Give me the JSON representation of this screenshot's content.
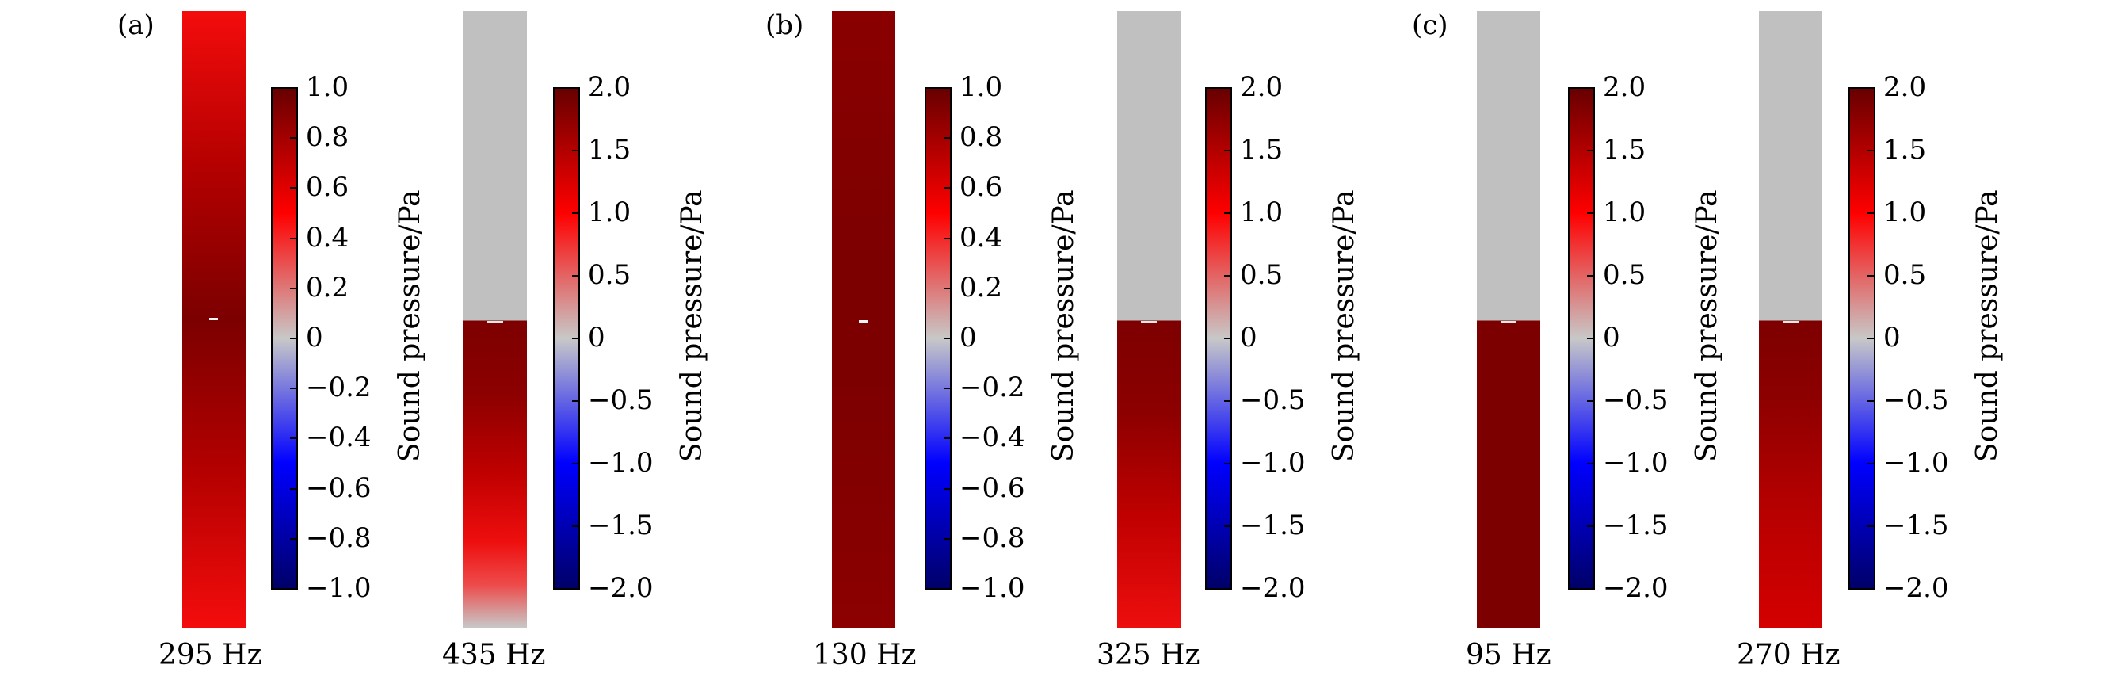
{
  "colors": {
    "gray": "#c0c0c0",
    "dark_red": "#7d0000",
    "mid_red": "#b00000",
    "bright_red": "#ee0e0e"
  },
  "panels": [
    {
      "label": "(a)",
      "columns": [
        {
          "frequency": "295 Hz",
          "colorbar_ticks": [
            "1.0",
            "0.8",
            "0.6",
            "0.4",
            "0.2",
            "0",
            "−0.2",
            "−0.4",
            "−0.6",
            "−0.8",
            "−1.0"
          ],
          "colorbar_title": "Sound pressure/Pa"
        },
        {
          "frequency": "435 Hz",
          "colorbar_ticks": [
            "2.0",
            "1.5",
            "1.0",
            "0.5",
            "0",
            "−0.5",
            "−1.0",
            "−1.5",
            "−2.0"
          ],
          "colorbar_title": "Sound pressure/Pa"
        }
      ]
    },
    {
      "label": "(b)",
      "columns": [
        {
          "frequency": "130 Hz",
          "colorbar_ticks": [
            "1.0",
            "0.8",
            "0.6",
            "0.4",
            "0.2",
            "0",
            "−0.2",
            "−0.4",
            "−0.6",
            "−0.8",
            "−1.0"
          ],
          "colorbar_title": "Sound pressure/Pa"
        },
        {
          "frequency": "325 Hz",
          "colorbar_ticks": [
            "2.0",
            "1.5",
            "1.0",
            "0.5",
            "0",
            "−0.5",
            "−1.0",
            "−1.5",
            "−2.0"
          ],
          "colorbar_title": "Sound pressure/Pa"
        }
      ]
    },
    {
      "label": "(c)",
      "columns": [
        {
          "frequency": "95 Hz",
          "colorbar_ticks": [
            "2.0",
            "1.5",
            "1.0",
            "0.5",
            "0",
            "−0.5",
            "−1.0",
            "−1.5",
            "−2.0"
          ],
          "colorbar_title": "Sound pressure/Pa"
        },
        {
          "frequency": "270 Hz",
          "colorbar_ticks": [
            "2.0",
            "1.5",
            "1.0",
            "0.5",
            "0",
            "−0.5",
            "−1.0",
            "−1.5",
            "−2.0"
          ],
          "colorbar_title": "Sound pressure/Pa"
        }
      ]
    }
  ]
}
